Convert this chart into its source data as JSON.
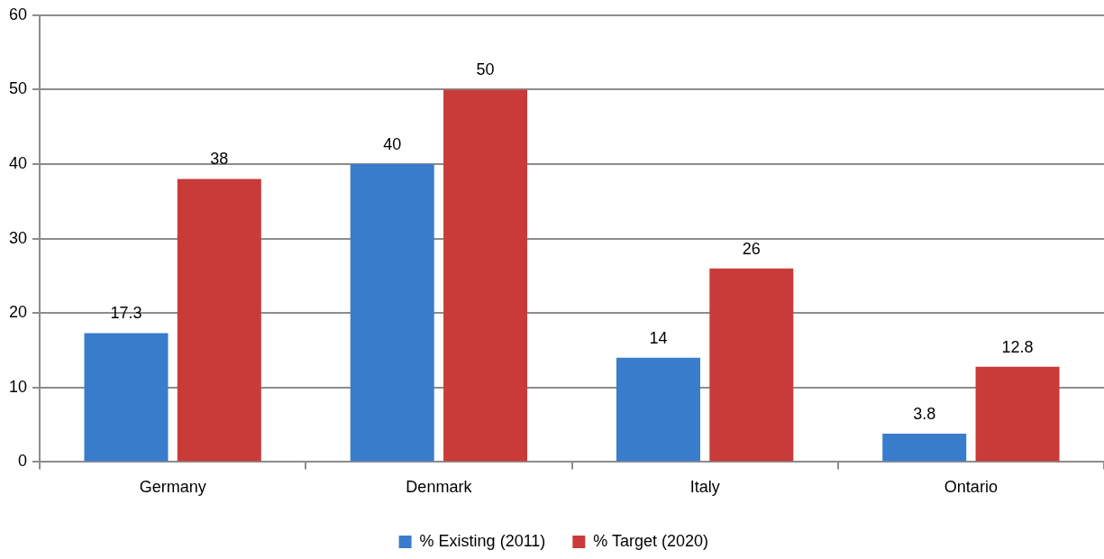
{
  "chart_data": {
    "type": "bar",
    "categories": [
      "Germany",
      "Denmark",
      "Italy",
      "Ontario"
    ],
    "series": [
      {
        "name": "% Existing (2011)",
        "color": "#3a7ccc",
        "values": [
          17.3,
          40,
          14,
          3.8
        ]
      },
      {
        "name": "% Target (2020)",
        "color": "#c93b39",
        "values": [
          38,
          50,
          26,
          12.8
        ]
      }
    ],
    "ylim": [
      0,
      60
    ],
    "yticks": [
      0,
      10,
      20,
      30,
      40,
      50,
      60
    ],
    "grid": "y",
    "legend": "bottom",
    "data_labels": true
  }
}
